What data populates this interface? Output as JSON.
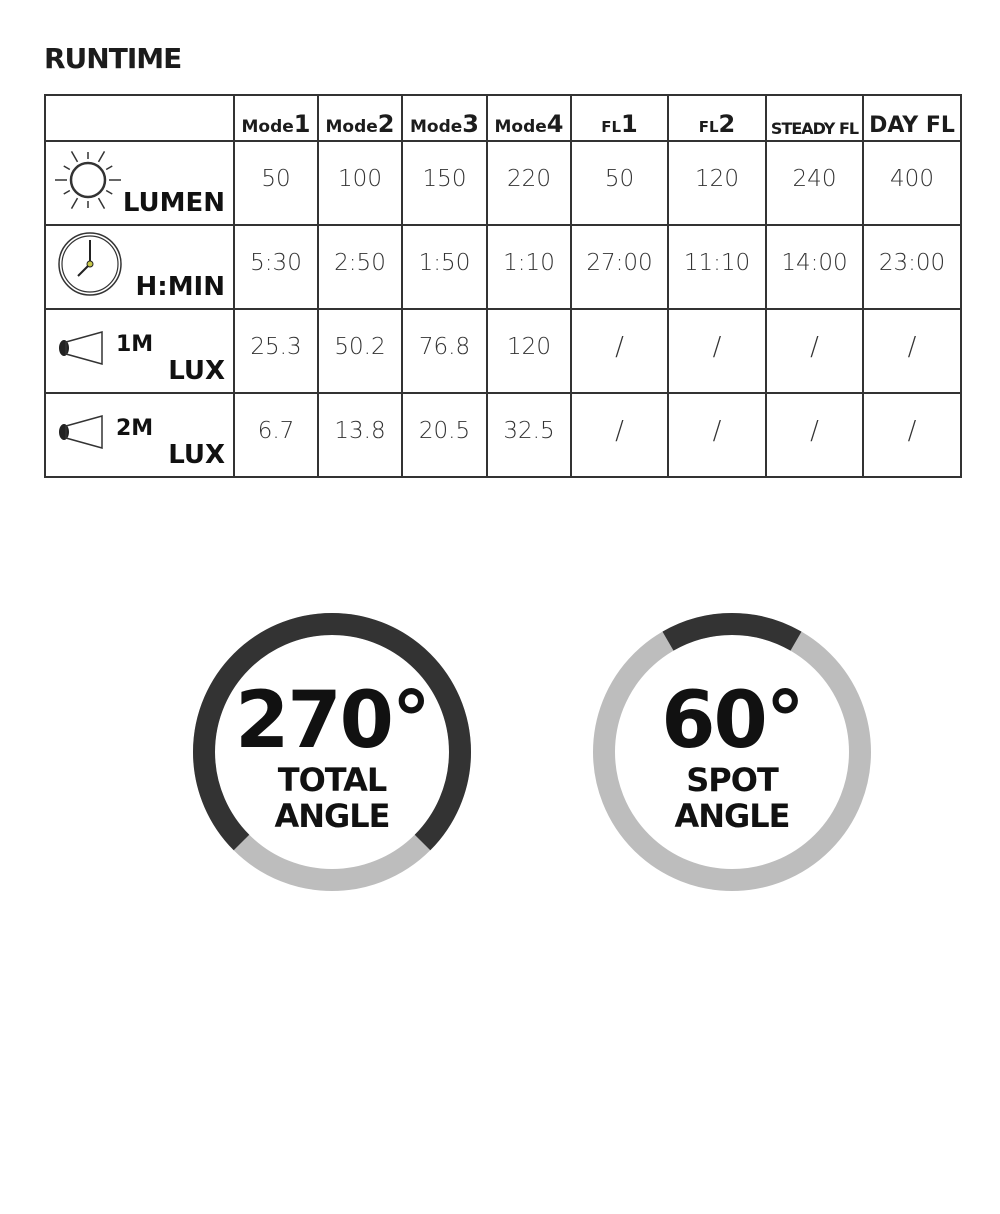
{
  "title": "RUNTIME",
  "columns": [
    {
      "prefix": "Mode",
      "suffix": "1"
    },
    {
      "prefix": "Mode",
      "suffix": "2"
    },
    {
      "prefix": "Mode",
      "suffix": "3"
    },
    {
      "prefix": "Mode",
      "suffix": "4"
    },
    {
      "prefix": "FL",
      "suffix": "1"
    },
    {
      "prefix": "FL",
      "suffix": "2"
    },
    {
      "prefix": "",
      "suffix": "STEADY FL"
    },
    {
      "prefix": "",
      "suffix": "DAY FL"
    }
  ],
  "rows": [
    {
      "icon": "sun-icon",
      "label": "LUMEN",
      "sub": "",
      "values": [
        "50",
        "100",
        "150",
        "220",
        "50",
        "120",
        "240",
        "400"
      ]
    },
    {
      "icon": "clock-icon",
      "label": "H:MIN",
      "sub": "",
      "values": [
        "5:30",
        "2:50",
        "1:50",
        "1:10",
        "27:00",
        "11:10",
        "14:00",
        "23:00"
      ]
    },
    {
      "icon": "flashlight-beam-icon",
      "label": "LUX",
      "sub": "1M",
      "values": [
        "25.3",
        "50.2",
        "76.8",
        "120",
        "/",
        "/",
        "/",
        "/"
      ]
    },
    {
      "icon": "flashlight-beam-icon",
      "label": "LUX",
      "sub": "2M",
      "values": [
        "6.7",
        "13.8",
        "20.5",
        "32.5",
        "/",
        "/",
        "/",
        "/"
      ]
    }
  ],
  "gauges": [
    {
      "value": "270°",
      "line1": "TOTAL",
      "line2": "ANGLE",
      "degrees": 270,
      "centered_on": "top"
    },
    {
      "value": "60°",
      "line1": "SPOT",
      "line2": "ANGLE",
      "degrees": 60,
      "centered_on": "top"
    }
  ],
  "colors": {
    "arc_active": "#333333",
    "arc_inactive": "#bdbdbd"
  }
}
